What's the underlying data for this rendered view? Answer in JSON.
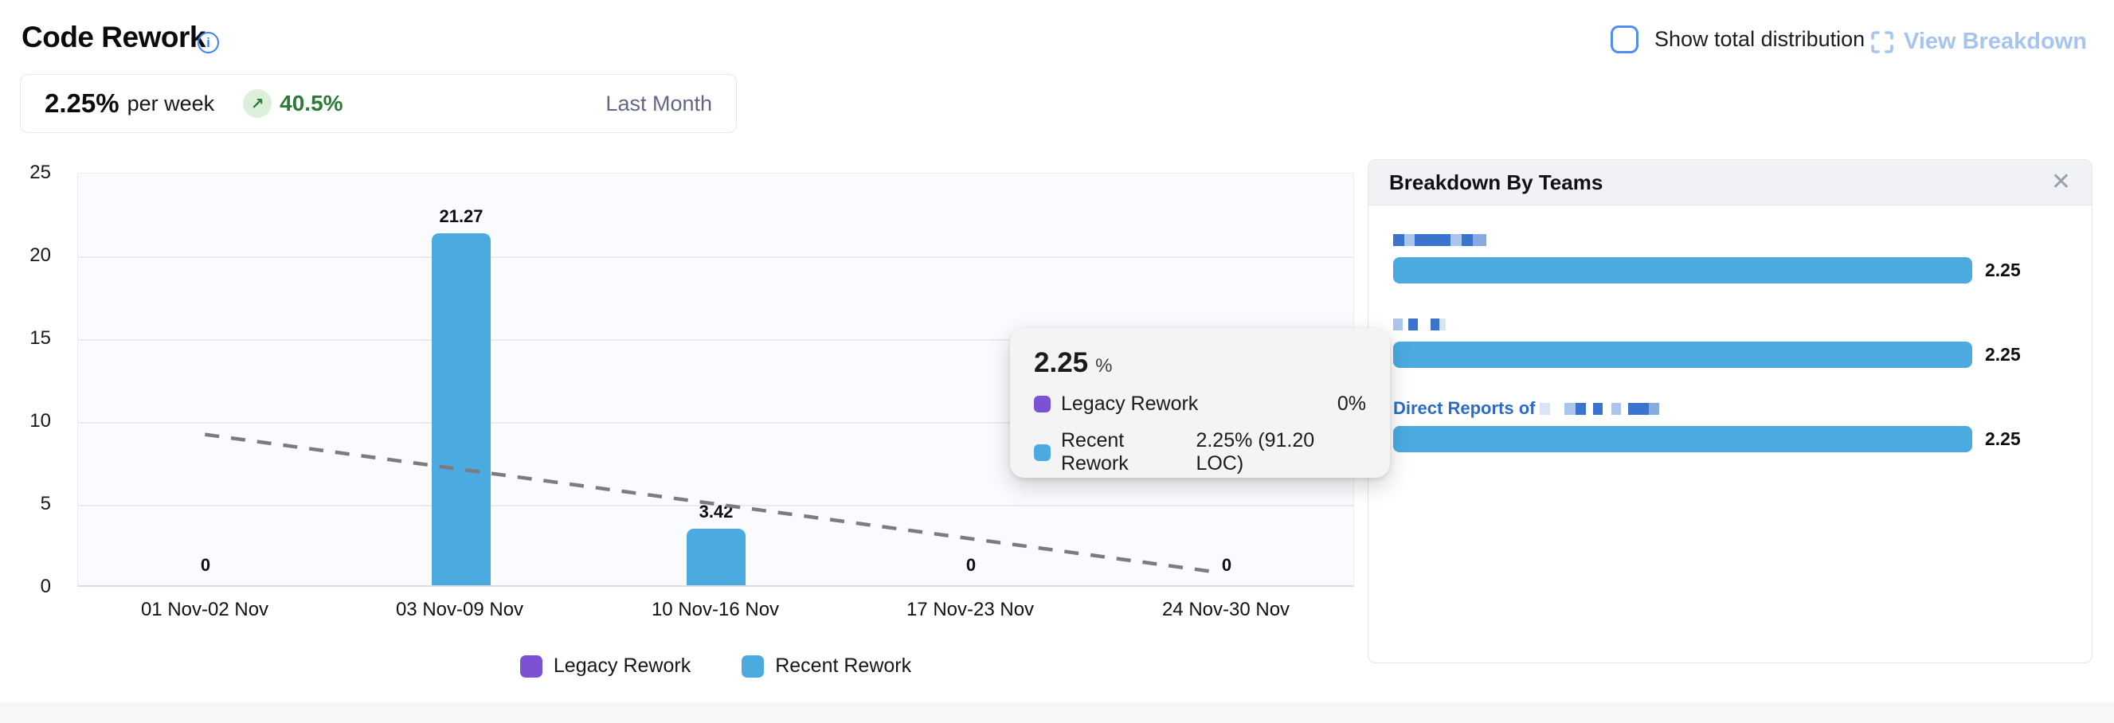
{
  "header": {
    "title": "Code Rework",
    "info_icon": "i"
  },
  "summary": {
    "value": "2.25%",
    "unit": "per week",
    "delta": "40.5%",
    "delta_direction": "up",
    "delta_arrow": "↗",
    "delta_color": "#2c7a36",
    "period": "Last Month"
  },
  "controls": {
    "show_total_distribution_label": "Show total distribution",
    "checkbox_checked": false,
    "view_breakdown_label": "View Breakdown"
  },
  "chart_data": {
    "type": "bar",
    "title": "",
    "xlabel": "",
    "ylabel": "",
    "categories": [
      "01 Nov-02 Nov",
      "03 Nov-09 Nov",
      "10 Nov-16 Nov",
      "17 Nov-23 Nov",
      "24 Nov-30 Nov"
    ],
    "series": [
      {
        "name": "Legacy Rework",
        "color": "#7c52d5",
        "values": [
          0,
          0,
          0,
          0,
          0
        ]
      },
      {
        "name": "Recent Rework",
        "color": "#4babe0",
        "values": [
          0,
          21.27,
          3.42,
          0,
          0
        ]
      }
    ],
    "bar_labels": [
      "0",
      "21.27",
      "3.42",
      "0",
      "0"
    ],
    "yticks": [
      "25",
      "20",
      "15",
      "10",
      "5",
      "0"
    ],
    "ylim": [
      0,
      25
    ],
    "grid": true,
    "legend_position": "bottom",
    "trendline": {
      "style": "dashed",
      "color": "#7c7c7c",
      "start": {
        "x_frac": 0.1,
        "value": 9.2
      },
      "end": {
        "x_frac": 0.891,
        "value": 0.9
      }
    }
  },
  "tooltip": {
    "value": "2.25",
    "unit": "%",
    "rows": [
      {
        "label": "Legacy Rework",
        "color": "#7c52d5",
        "value": "0%"
      },
      {
        "label": "Recent Rework",
        "color": "#4babe0",
        "value": "2.25% (91.20 LOC)"
      }
    ]
  },
  "breakdown": {
    "title": "Breakdown By Teams",
    "close_icon": "✕",
    "bar_color": "#4babe0",
    "rows": [
      {
        "team_label": "",
        "redacted": true,
        "value": "2.25"
      },
      {
        "team_label": "",
        "redacted": true,
        "value": "2.25"
      },
      {
        "team_label": "Direct Reports of",
        "redacted": true,
        "value": "2.25"
      }
    ]
  }
}
